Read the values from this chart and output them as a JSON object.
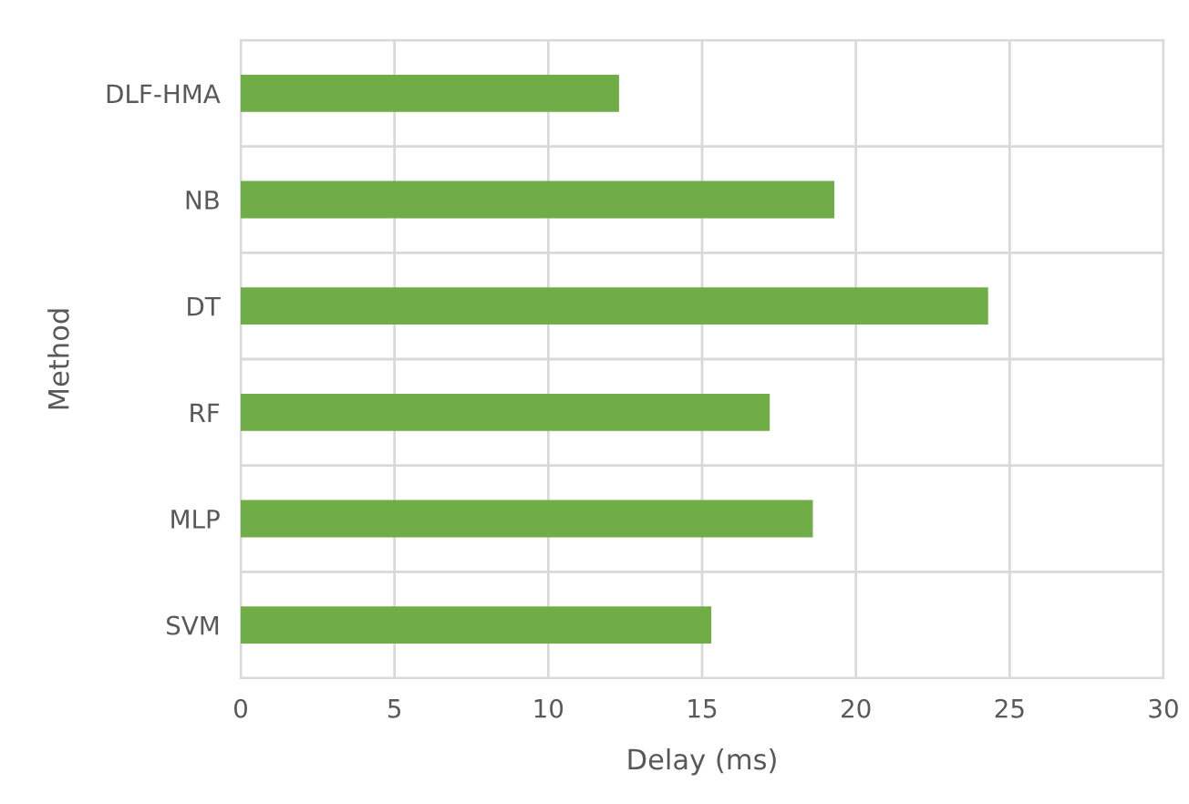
{
  "chart_data": {
    "type": "bar",
    "orientation": "horizontal",
    "xlabel": "Delay (ms)",
    "ylabel": "Method",
    "categories": [
      "DLF-HMA",
      "NB",
      "DT",
      "RF",
      "MLP",
      "SVM"
    ],
    "series": [
      {
        "color": "#70ad47",
        "values": [
          12.3,
          19.3,
          24.3,
          17.2,
          18.6,
          15.3
        ]
      }
    ],
    "xlim": [
      0,
      30
    ],
    "xticks": [
      0,
      5,
      10,
      15,
      20,
      25,
      30
    ],
    "grid": true,
    "legend": false
  }
}
